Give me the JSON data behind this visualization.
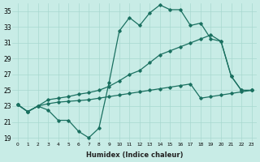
{
  "xlabel": "Humidex (Indice chaleur)",
  "bg_color": "#c8ece6",
  "grid_color": "#a8d8d0",
  "line_color": "#1a7060",
  "xlim": [
    -0.5,
    23.5
  ],
  "ylim": [
    18.5,
    36.0
  ],
  "xticks": [
    0,
    1,
    2,
    3,
    4,
    5,
    6,
    7,
    8,
    9,
    10,
    11,
    12,
    13,
    14,
    15,
    16,
    17,
    18,
    19,
    20,
    21,
    22,
    23
  ],
  "yticks": [
    19,
    21,
    23,
    25,
    27,
    29,
    31,
    33,
    35
  ],
  "line1_x": [
    0,
    1,
    2,
    3,
    4,
    5,
    6,
    7,
    8,
    9,
    10,
    11,
    12,
    13,
    14,
    15,
    16,
    17,
    18,
    19,
    20,
    21,
    22,
    23
  ],
  "line1_y": [
    23.2,
    22.3,
    23.0,
    22.5,
    21.2,
    21.2,
    19.8,
    19.0,
    20.2,
    26.0,
    32.5,
    34.2,
    33.2,
    34.8,
    35.8,
    35.2,
    35.2,
    33.2,
    33.5,
    31.5,
    31.2,
    26.8,
    25.0,
    25.0
  ],
  "line2_x": [
    0,
    1,
    2,
    3,
    4,
    5,
    6,
    7,
    8,
    9,
    10,
    11,
    12,
    13,
    14,
    15,
    16,
    17,
    18,
    19,
    20,
    21,
    22,
    23
  ],
  "line2_y": [
    23.2,
    22.3,
    23.0,
    23.8,
    24.0,
    24.2,
    24.5,
    24.7,
    25.0,
    25.5,
    26.2,
    27.0,
    27.5,
    28.5,
    29.5,
    30.0,
    30.5,
    31.0,
    31.5,
    32.0,
    31.2,
    26.8,
    25.0,
    25.0
  ],
  "line3_x": [
    0,
    1,
    2,
    3,
    4,
    5,
    6,
    7,
    8,
    9,
    10,
    11,
    12,
    13,
    14,
    15,
    16,
    17,
    18,
    19,
    20,
    21,
    22,
    23
  ],
  "line3_y": [
    23.2,
    22.3,
    23.0,
    23.3,
    23.5,
    23.6,
    23.7,
    23.8,
    24.0,
    24.2,
    24.4,
    24.6,
    24.8,
    25.0,
    25.2,
    25.4,
    25.6,
    25.8,
    24.0,
    24.2,
    24.4,
    24.6,
    24.8,
    25.0
  ]
}
